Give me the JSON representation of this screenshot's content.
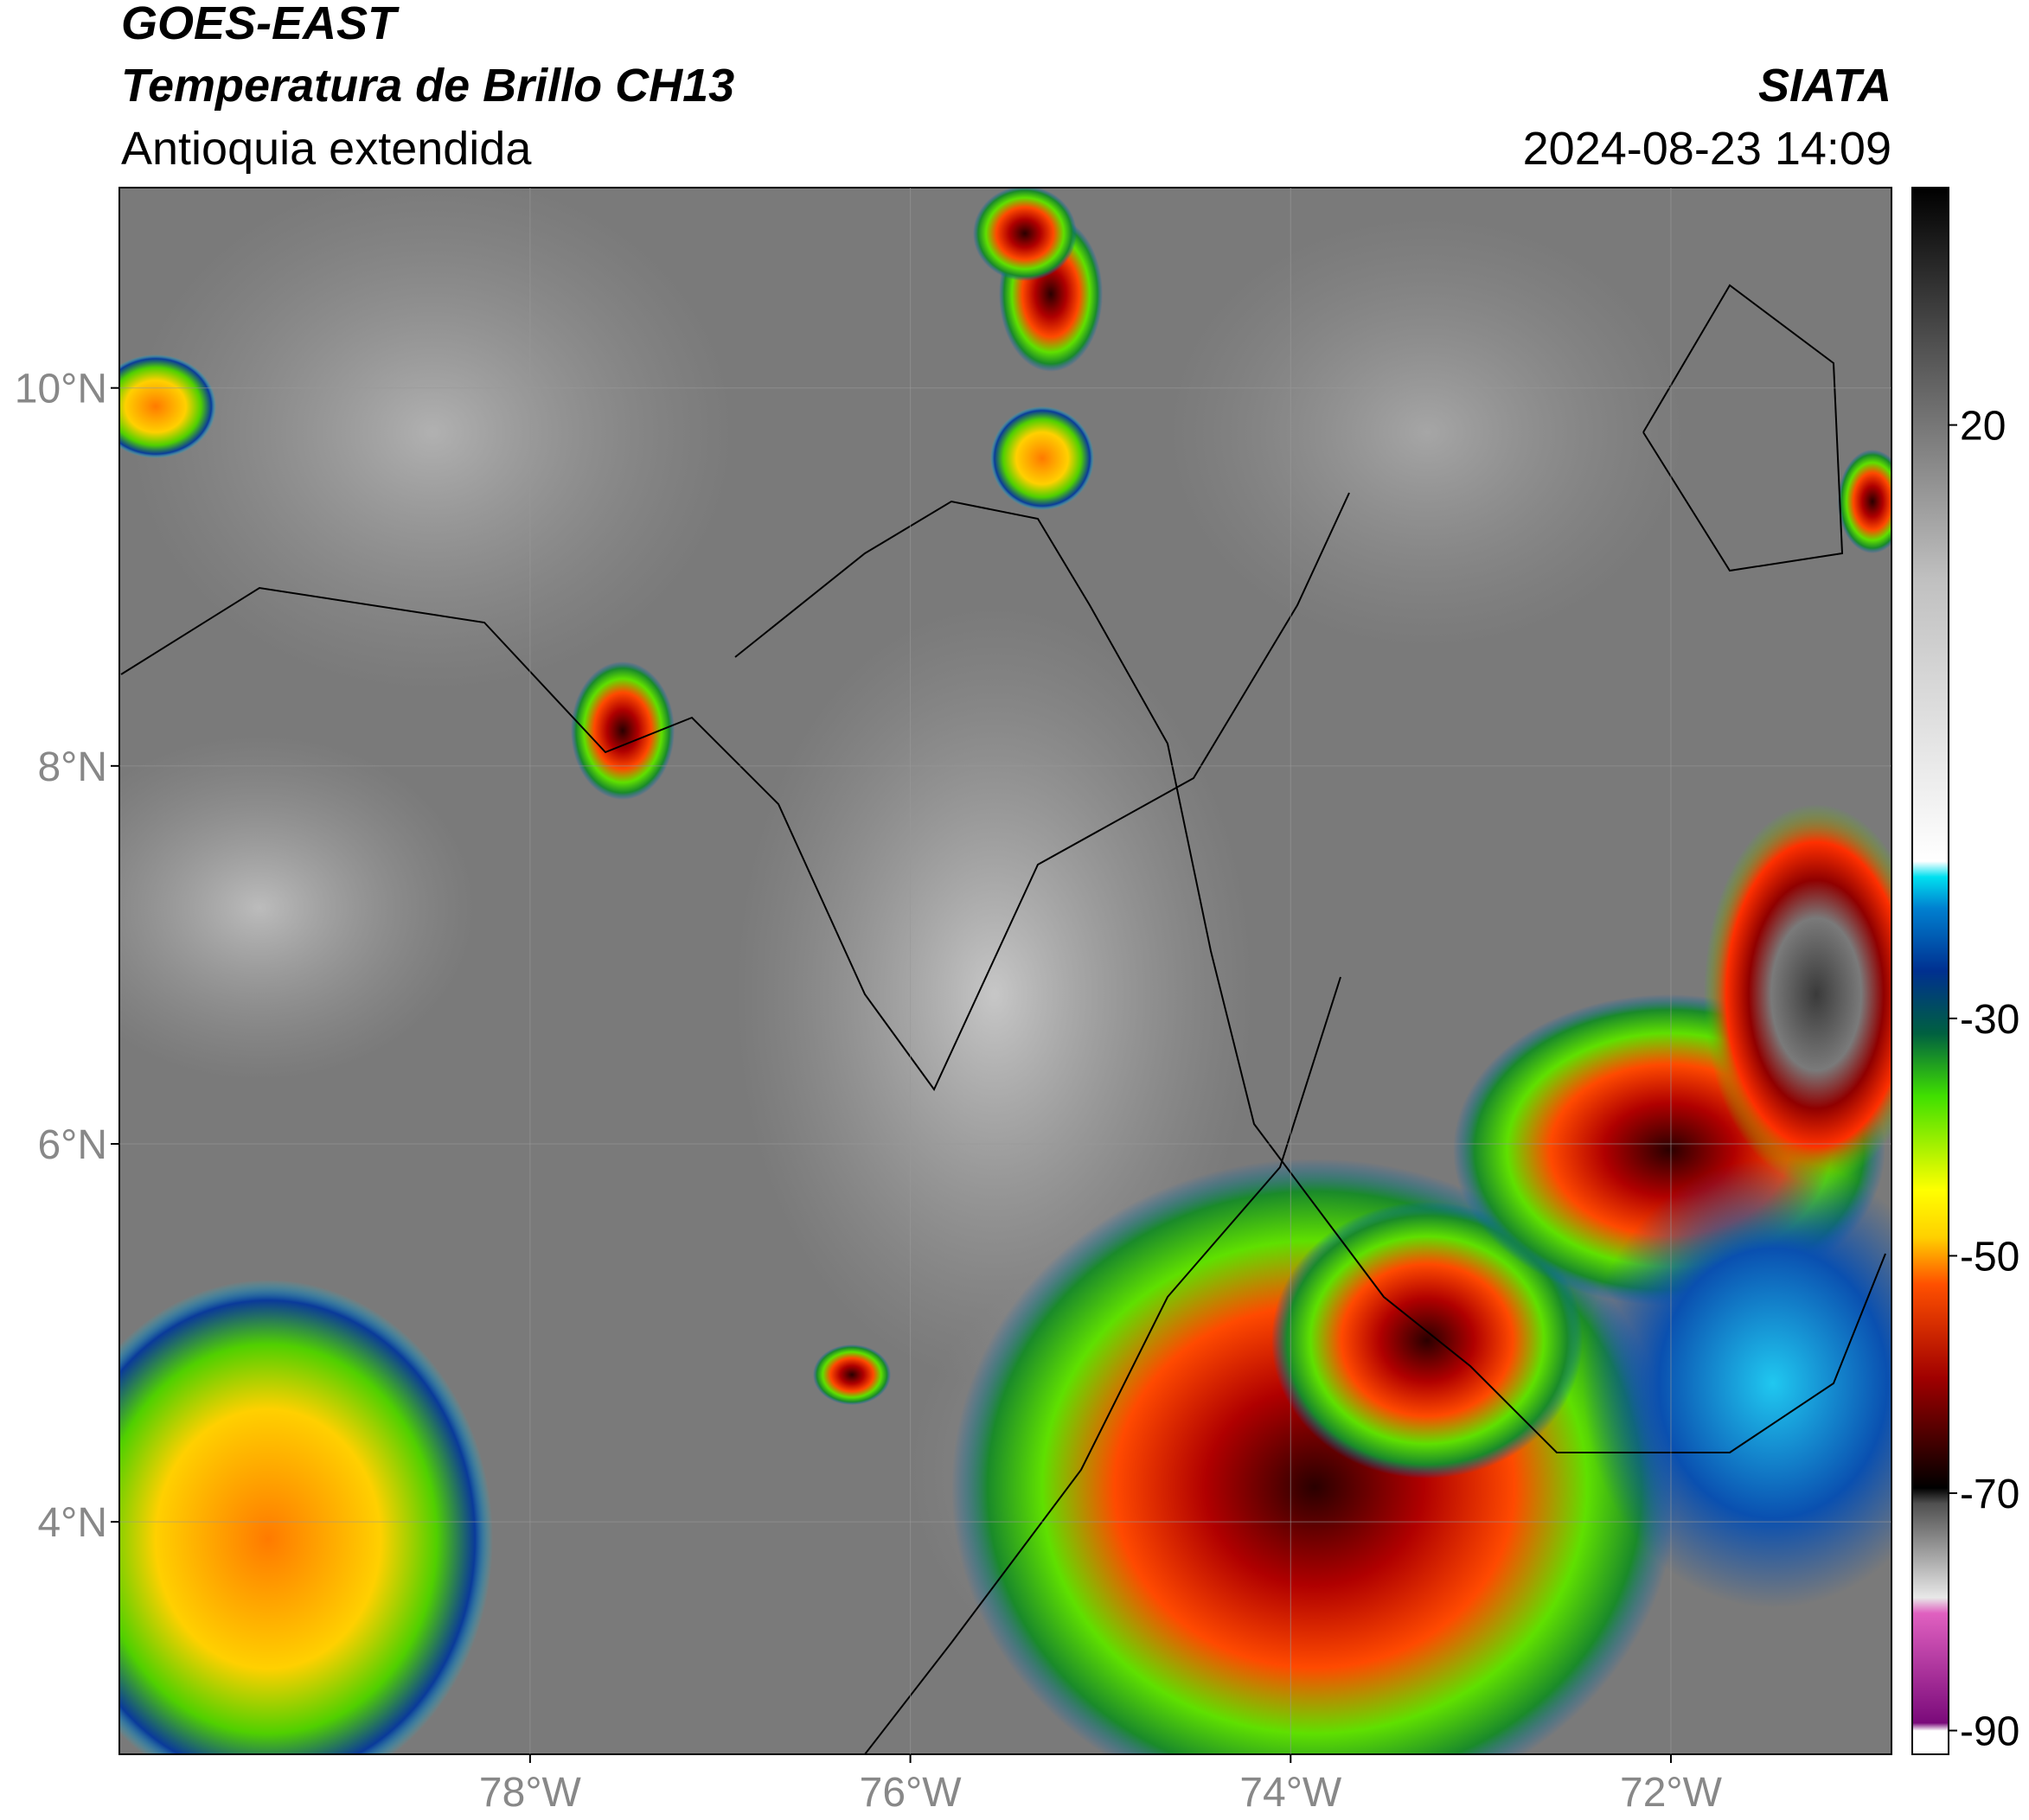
{
  "header": {
    "satellite": "GOES-EAST",
    "product": "Temperatura de Brillo CH13",
    "region": "Antioquia extendida",
    "source": "SIATA",
    "datetime": "2024-08-23 14:09"
  },
  "map": {
    "lonlim": [
      -80.16,
      -70.84
    ],
    "latlim": [
      2.77,
      11.06
    ],
    "lon_ticks": [
      {
        "value": -78,
        "label": "78°W"
      },
      {
        "value": -76,
        "label": "76°W"
      },
      {
        "value": -74,
        "label": "74°W"
      },
      {
        "value": -72,
        "label": "72°W"
      }
    ],
    "lat_ticks": [
      {
        "value": 10,
        "label": "10°N"
      },
      {
        "value": 8,
        "label": "8°N"
      },
      {
        "value": 6,
        "label": "6°N"
      },
      {
        "value": 4,
        "label": "4°N"
      }
    ]
  },
  "colorbar": {
    "lim": [
      -92,
      40
    ],
    "ticks": [
      20,
      -30,
      -50,
      -70,
      -90
    ]
  }
}
